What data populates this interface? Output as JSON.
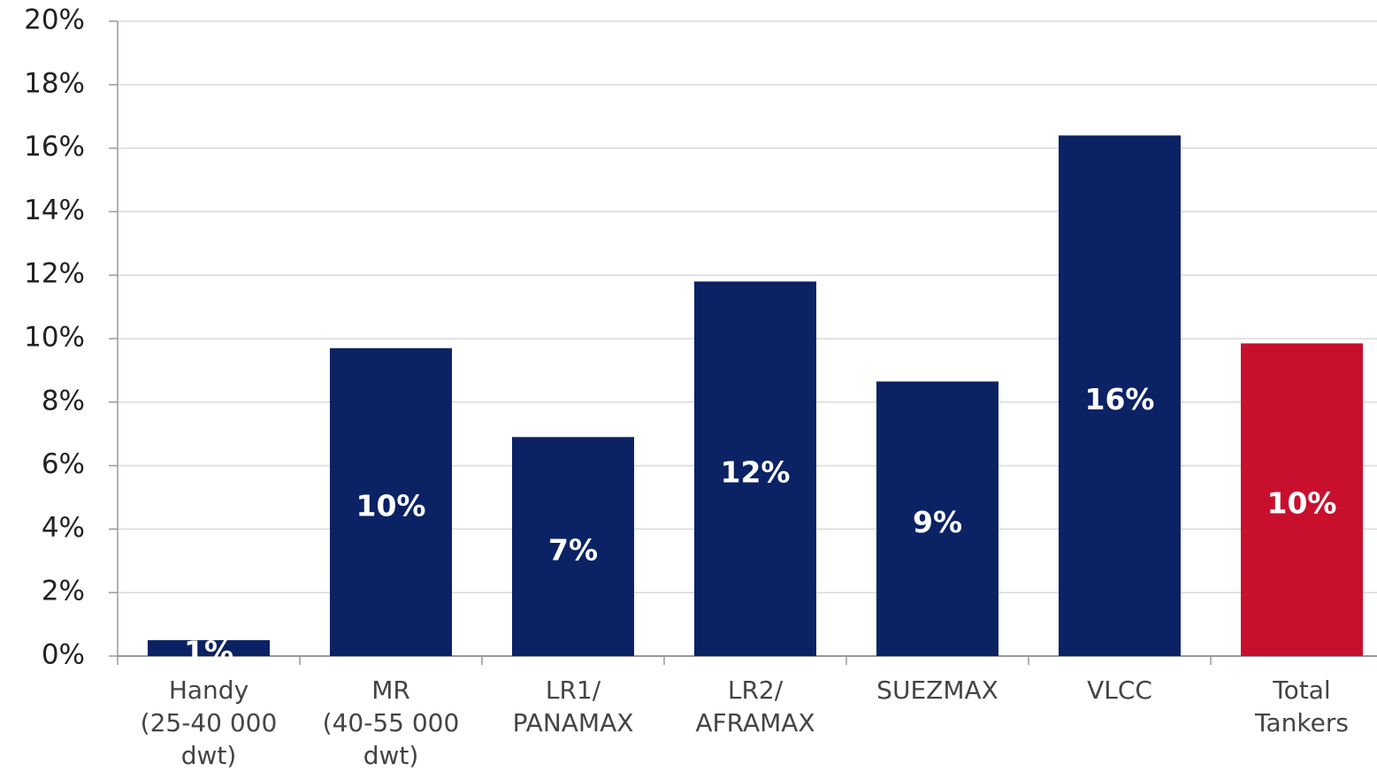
{
  "chart_data": {
    "type": "bar",
    "categories": [
      [
        "Handy",
        "(25-40 000",
        "dwt)"
      ],
      [
        "MR",
        "(40-55 000",
        "dwt)"
      ],
      [
        "LR1/",
        "PANAMAX"
      ],
      [
        "LR2/",
        "AFRAMAX"
      ],
      [
        "SUEZMAX"
      ],
      [
        "VLCC"
      ],
      [
        "Total",
        "Tankers"
      ]
    ],
    "values": [
      0.5,
      9.7,
      6.9,
      11.8,
      8.65,
      16.4,
      9.85
    ],
    "value_labels": [
      "1%",
      "10%",
      "7%",
      "12%",
      "9%",
      "16%",
      "10%"
    ],
    "colors": [
      "#0b2265",
      "#0b2265",
      "#0b2265",
      "#0b2265",
      "#0b2265",
      "#0b2265",
      "#c8102e"
    ],
    "ylim": [
      0,
      20
    ],
    "yticks": [
      {
        "value": 0,
        "label": "0%"
      },
      {
        "value": 2,
        "label": "2%"
      },
      {
        "value": 4,
        "label": "4%"
      },
      {
        "value": 6,
        "label": "6%"
      },
      {
        "value": 8,
        "label": "8%"
      },
      {
        "value": 10,
        "label": "10%"
      },
      {
        "value": 12,
        "label": "12%"
      },
      {
        "value": 14,
        "label": "14%"
      },
      {
        "value": 16,
        "label": "16%"
      },
      {
        "value": 18,
        "label": "18%"
      },
      {
        "value": 20,
        "label": "20%"
      }
    ],
    "grid": true
  }
}
